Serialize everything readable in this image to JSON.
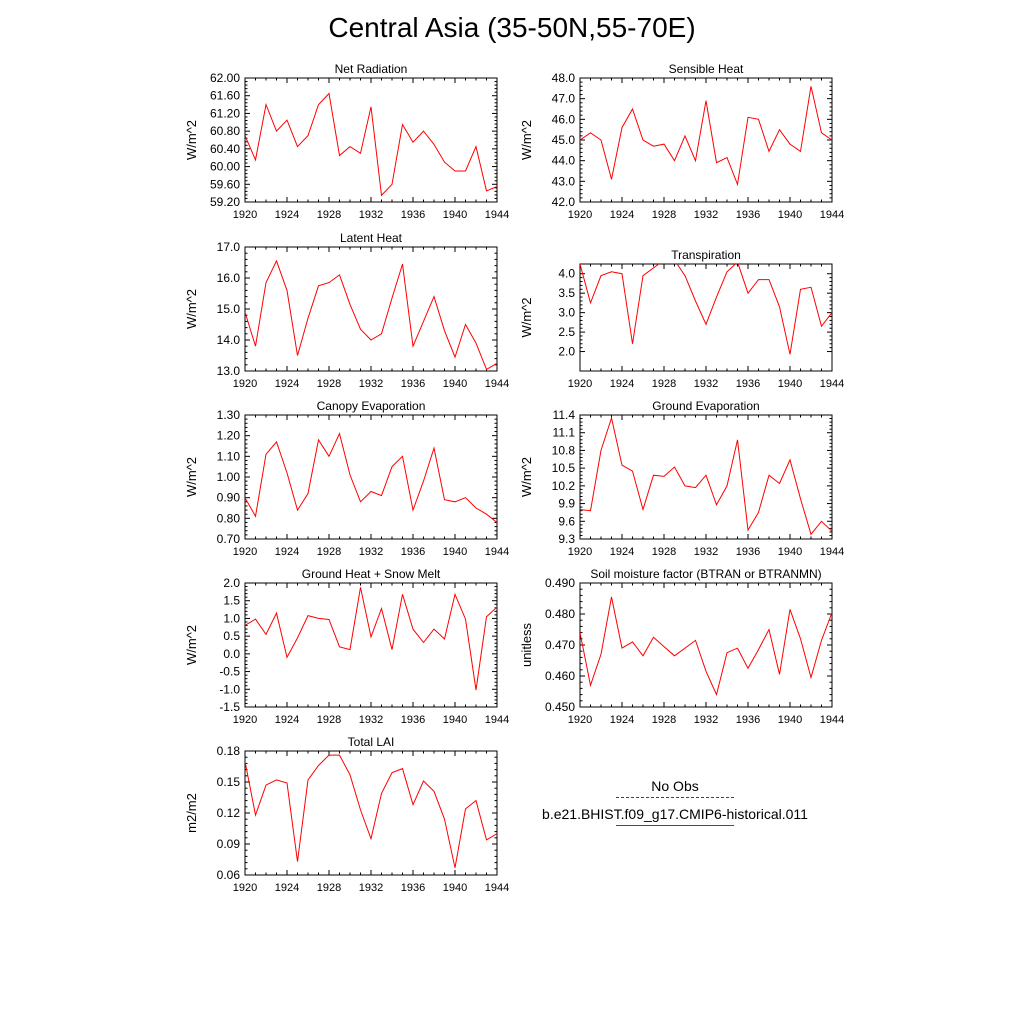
{
  "page_title": "Central Asia (35-50N,55-70E)",
  "legend": {
    "obs_label": "No Obs",
    "obs_color": "#3a3a8c",
    "model_label": "b.e21.BHIST.f09_g17.CMIP6-historical.011",
    "model_color": "#ff0000"
  },
  "chart_data": [
    {
      "type": "line",
      "title": "Net Radiation",
      "ylabel": "W/m^2",
      "xlim": [
        1920,
        1944
      ],
      "ylim": [
        59.2,
        62.0
      ],
      "xticks": [
        1920,
        1924,
        1928,
        1932,
        1936,
        1940,
        1944
      ],
      "yticks": [
        59.2,
        59.6,
        60.0,
        60.4,
        60.8,
        61.2,
        61.6,
        62.0
      ],
      "ytick_labels": [
        "59.20",
        "59.60",
        "60.00",
        "60.40",
        "60.80",
        "61.20",
        "61.60",
        "62.00"
      ],
      "x": [
        1920,
        1921,
        1922,
        1923,
        1924,
        1925,
        1926,
        1927,
        1928,
        1929,
        1930,
        1931,
        1932,
        1933,
        1934,
        1935,
        1936,
        1937,
        1938,
        1939,
        1940,
        1941,
        1942,
        1943,
        1944
      ],
      "series": [
        {
          "color": "#ff0000",
          "values": [
            60.7,
            60.15,
            61.4,
            60.8,
            61.05,
            60.45,
            60.7,
            61.4,
            61.65,
            60.25,
            60.45,
            60.3,
            61.35,
            59.35,
            59.6,
            60.95,
            60.55,
            60.8,
            60.5,
            60.1,
            59.9,
            59.9,
            60.45,
            59.45,
            59.55
          ]
        }
      ]
    },
    {
      "type": "line",
      "title": "Sensible Heat",
      "ylabel": "W/m^2",
      "xlim": [
        1920,
        1944
      ],
      "ylim": [
        42.0,
        48.0
      ],
      "xticks": [
        1920,
        1924,
        1928,
        1932,
        1936,
        1940,
        1944
      ],
      "yticks": [
        42,
        43,
        44,
        45,
        46,
        47,
        48
      ],
      "ytick_labels": [
        "42.0",
        "43.0",
        "44.0",
        "45.0",
        "46.0",
        "47.0",
        "48.0"
      ],
      "x": [
        1920,
        1921,
        1922,
        1923,
        1924,
        1925,
        1926,
        1927,
        1928,
        1929,
        1930,
        1931,
        1932,
        1933,
        1934,
        1935,
        1936,
        1937,
        1938,
        1939,
        1940,
        1941,
        1942,
        1943,
        1944
      ],
      "series": [
        {
          "color": "#ff0000",
          "values": [
            45.0,
            45.35,
            45.0,
            43.1,
            45.6,
            46.5,
            45.0,
            44.7,
            44.8,
            44.0,
            45.2,
            44.0,
            46.9,
            43.9,
            44.15,
            42.85,
            46.1,
            46.0,
            44.45,
            45.5,
            44.8,
            44.45,
            47.6,
            45.35,
            45.0
          ]
        }
      ]
    },
    {
      "type": "line",
      "title": "Latent Heat",
      "ylabel": "W/m^2",
      "xlim": [
        1920,
        1944
      ],
      "ylim": [
        13.0,
        17.0
      ],
      "xticks": [
        1920,
        1924,
        1928,
        1932,
        1936,
        1940,
        1944
      ],
      "yticks": [
        13,
        14,
        15,
        16,
        17
      ],
      "ytick_labels": [
        "13.0",
        "14.0",
        "15.0",
        "16.0",
        "17.0"
      ],
      "x": [
        1920,
        1921,
        1922,
        1923,
        1924,
        1925,
        1926,
        1927,
        1928,
        1929,
        1930,
        1931,
        1932,
        1933,
        1934,
        1935,
        1936,
        1937,
        1938,
        1939,
        1940,
        1941,
        1942,
        1943,
        1944
      ],
      "series": [
        {
          "color": "#ff0000",
          "values": [
            14.9,
            13.8,
            15.85,
            16.55,
            15.6,
            13.5,
            14.7,
            15.75,
            15.85,
            16.1,
            15.15,
            14.35,
            14.0,
            14.2,
            15.35,
            16.45,
            13.8,
            14.6,
            15.4,
            14.3,
            13.45,
            14.5,
            13.9,
            13.05,
            13.25
          ]
        }
      ]
    },
    {
      "type": "line",
      "title": "Transpiration",
      "ylabel": "W/m^2",
      "xlim": [
        1920,
        1944
      ],
      "ylim": [
        1.5,
        4.25
      ],
      "xticks": [
        1920,
        1924,
        1928,
        1932,
        1936,
        1940,
        1944
      ],
      "yticks": [
        2.0,
        2.5,
        3.0,
        3.5,
        4.0
      ],
      "ytick_labels": [
        "2.0",
        "2.5",
        "3.0",
        "3.5",
        "4.0"
      ],
      "x": [
        1920,
        1921,
        1922,
        1923,
        1924,
        1925,
        1926,
        1927,
        1928,
        1929,
        1930,
        1931,
        1932,
        1933,
        1934,
        1935,
        1936,
        1937,
        1938,
        1939,
        1940,
        1941,
        1942,
        1943,
        1944
      ],
      "series": [
        {
          "color": "#ff0000",
          "values": [
            4.25,
            3.25,
            3.95,
            4.05,
            4.0,
            2.2,
            3.95,
            4.15,
            4.35,
            4.35,
            3.95,
            3.3,
            2.7,
            3.4,
            4.05,
            4.3,
            3.5,
            3.85,
            3.85,
            3.15,
            1.93,
            3.6,
            3.65,
            2.65,
            3.0
          ]
        }
      ]
    },
    {
      "type": "line",
      "title": "Canopy Evaporation",
      "ylabel": "W/m^2",
      "xlim": [
        1920,
        1944
      ],
      "ylim": [
        0.7,
        1.3
      ],
      "xticks": [
        1920,
        1924,
        1928,
        1932,
        1936,
        1940,
        1944
      ],
      "yticks": [
        0.7,
        0.8,
        0.9,
        1.0,
        1.1,
        1.2,
        1.3
      ],
      "ytick_labels": [
        "0.70",
        "0.80",
        "0.90",
        "1.00",
        "1.10",
        "1.20",
        "1.30"
      ],
      "x": [
        1920,
        1921,
        1922,
        1923,
        1924,
        1925,
        1926,
        1927,
        1928,
        1929,
        1930,
        1931,
        1932,
        1933,
        1934,
        1935,
        1936,
        1937,
        1938,
        1939,
        1940,
        1941,
        1942,
        1943,
        1944
      ],
      "series": [
        {
          "color": "#ff0000",
          "values": [
            0.9,
            0.81,
            1.11,
            1.17,
            1.02,
            0.84,
            0.92,
            1.18,
            1.1,
            1.21,
            1.01,
            0.88,
            0.93,
            0.91,
            1.05,
            1.1,
            0.84,
            0.98,
            1.14,
            0.89,
            0.88,
            0.9,
            0.85,
            0.82,
            0.78
          ]
        }
      ]
    },
    {
      "type": "line",
      "title": "Ground Evaporation",
      "ylabel": "W/m^2",
      "xlim": [
        1920,
        1944
      ],
      "ylim": [
        9.3,
        11.4
      ],
      "xticks": [
        1920,
        1924,
        1928,
        1932,
        1936,
        1940,
        1944
      ],
      "yticks": [
        9.3,
        9.6,
        9.9,
        10.2,
        10.5,
        10.8,
        11.1,
        11.4
      ],
      "ytick_labels": [
        "9.3",
        "9.6",
        "9.9",
        "10.2",
        "10.5",
        "10.8",
        "11.1",
        "11.4"
      ],
      "x": [
        1920,
        1921,
        1922,
        1923,
        1924,
        1925,
        1926,
        1927,
        1928,
        1929,
        1930,
        1931,
        1932,
        1933,
        1934,
        1935,
        1936,
        1937,
        1938,
        1939,
        1940,
        1941,
        1942,
        1943,
        1944
      ],
      "series": [
        {
          "color": "#ff0000",
          "values": [
            9.8,
            9.78,
            10.8,
            11.35,
            10.55,
            10.45,
            9.8,
            10.38,
            10.36,
            10.52,
            10.2,
            10.17,
            10.38,
            9.88,
            10.2,
            10.98,
            9.45,
            9.75,
            10.38,
            10.24,
            10.64,
            9.98,
            9.38,
            9.6,
            9.43
          ]
        }
      ]
    },
    {
      "type": "line",
      "title": "Ground Heat + Snow Melt",
      "ylabel": "W/m^2",
      "xlim": [
        1920,
        1944
      ],
      "ylim": [
        -1.5,
        2.0
      ],
      "xticks": [
        1920,
        1924,
        1928,
        1932,
        1936,
        1940,
        1944
      ],
      "yticks": [
        -1.5,
        -1.0,
        -0.5,
        0.0,
        0.5,
        1.0,
        1.5,
        2.0
      ],
      "ytick_labels": [
        "-1.5",
        "-1.0",
        "-0.5",
        "0.0",
        "0.5",
        "1.0",
        "1.5",
        "2.0"
      ],
      "x": [
        1920,
        1921,
        1922,
        1923,
        1924,
        1925,
        1926,
        1927,
        1928,
        1929,
        1930,
        1931,
        1932,
        1933,
        1934,
        1935,
        1936,
        1937,
        1938,
        1939,
        1940,
        1941,
        1942,
        1943,
        1944
      ],
      "series": [
        {
          "color": "#ff0000",
          "values": [
            0.8,
            0.98,
            0.55,
            1.15,
            -0.1,
            0.45,
            1.08,
            1.0,
            0.97,
            0.2,
            0.12,
            1.88,
            0.48,
            1.28,
            0.12,
            1.68,
            0.7,
            0.32,
            0.7,
            0.42,
            1.68,
            0.98,
            -1.02,
            1.05,
            1.32
          ]
        }
      ]
    },
    {
      "type": "line",
      "title": "Soil moisture factor (BTRAN or BTRANMN)",
      "ylabel": "unitless",
      "xlim": [
        1920,
        1944
      ],
      "ylim": [
        0.45,
        0.49
      ],
      "xticks": [
        1920,
        1924,
        1928,
        1932,
        1936,
        1940,
        1944
      ],
      "yticks": [
        0.45,
        0.46,
        0.47,
        0.48,
        0.49
      ],
      "ytick_labels": [
        "0.450",
        "0.460",
        "0.470",
        "0.480",
        "0.490"
      ],
      "x": [
        1920,
        1921,
        1922,
        1923,
        1924,
        1925,
        1926,
        1927,
        1928,
        1929,
        1930,
        1931,
        1932,
        1933,
        1934,
        1935,
        1936,
        1937,
        1938,
        1939,
        1940,
        1941,
        1942,
        1943,
        1944
      ],
      "series": [
        {
          "color": "#ff0000",
          "values": [
            0.474,
            0.457,
            0.467,
            0.4855,
            0.469,
            0.471,
            0.4665,
            0.4725,
            0.4695,
            0.4665,
            0.469,
            0.4715,
            0.4615,
            0.454,
            0.4675,
            0.469,
            0.4625,
            0.4685,
            0.475,
            0.4605,
            0.4815,
            0.472,
            0.4595,
            0.4715,
            0.4805
          ]
        }
      ]
    },
    {
      "type": "line",
      "title": "Total LAI",
      "ylabel": "m2/m2",
      "xlim": [
        1920,
        1944
      ],
      "ylim": [
        0.06,
        0.18
      ],
      "xticks": [
        1920,
        1924,
        1928,
        1932,
        1936,
        1940,
        1944
      ],
      "yticks": [
        0.06,
        0.09,
        0.12,
        0.15,
        0.18
      ],
      "ytick_labels": [
        "0.06",
        "0.09",
        "0.12",
        "0.15",
        "0.18"
      ],
      "x": [
        1920,
        1921,
        1922,
        1923,
        1924,
        1925,
        1926,
        1927,
        1928,
        1929,
        1930,
        1931,
        1932,
        1933,
        1934,
        1935,
        1936,
        1937,
        1938,
        1939,
        1940,
        1941,
        1942,
        1943,
        1944
      ],
      "series": [
        {
          "color": "#ff0000",
          "values": [
            0.17,
            0.118,
            0.147,
            0.152,
            0.149,
            0.073,
            0.152,
            0.166,
            0.176,
            0.176,
            0.157,
            0.123,
            0.095,
            0.139,
            0.159,
            0.163,
            0.128,
            0.151,
            0.141,
            0.114,
            0.067,
            0.124,
            0.132,
            0.094,
            0.1
          ]
        }
      ]
    }
  ]
}
